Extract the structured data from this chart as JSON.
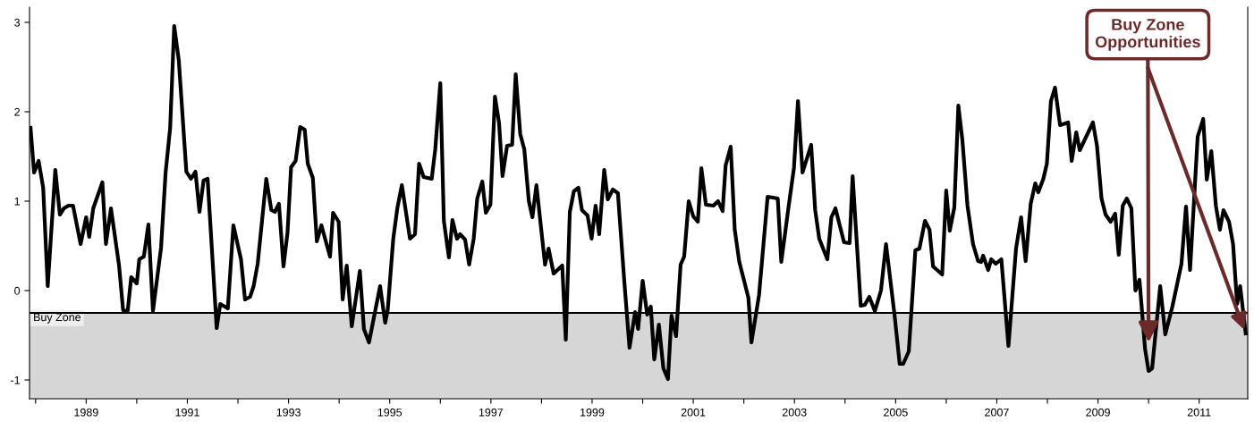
{
  "chart_data": {
    "type": "line",
    "x": [
      1987.9,
      1987.97,
      1988.06,
      1988.15,
      1988.24,
      1988.39,
      1988.48,
      1988.56,
      1988.65,
      1988.74,
      1988.89,
      1989.0,
      1989.06,
      1989.14,
      1989.32,
      1989.39,
      1989.49,
      1989.65,
      1989.73,
      1989.82,
      1989.89,
      1990.0,
      1990.05,
      1990.14,
      1990.23,
      1990.32,
      1990.48,
      1990.57,
      1990.66,
      1990.74,
      1990.83,
      1990.98,
      1991.07,
      1991.16,
      1991.24,
      1991.32,
      1991.4,
      1991.58,
      1991.65,
      1991.8,
      1991.91,
      1992.06,
      1992.14,
      1992.24,
      1992.31,
      1992.39,
      1992.56,
      1992.66,
      1992.73,
      1992.81,
      1992.9,
      1992.98,
      1993.05,
      1993.14,
      1993.23,
      1993.32,
      1993.38,
      1993.48,
      1993.56,
      1993.65,
      1993.82,
      1993.88,
      1993.99,
      1994.07,
      1994.15,
      1994.25,
      1994.41,
      1994.49,
      1994.59,
      1994.66,
      1994.81,
      1994.91,
      1994.96,
      1995.07,
      1995.15,
      1995.24,
      1995.4,
      1995.5,
      1995.58,
      1995.67,
      1995.83,
      1995.9,
      1996.0,
      1996.07,
      1996.17,
      1996.24,
      1996.33,
      1996.39,
      1996.49,
      1996.57,
      1996.66,
      1996.73,
      1996.83,
      1996.9,
      1996.99,
      1997.08,
      1997.16,
      1997.23,
      1997.32,
      1997.42,
      1997.49,
      1997.58,
      1997.66,
      1997.75,
      1997.82,
      1997.9,
      1998.07,
      1998.14,
      1998.24,
      1998.41,
      1998.48,
      1998.56,
      1998.64,
      1998.73,
      1998.8,
      1998.91,
      1998.99,
      1999.07,
      1999.14,
      1999.24,
      1999.31,
      1999.41,
      1999.51,
      1999.64,
      1999.74,
      1999.85,
      1999.91,
      2000.0,
      2000.09,
      2000.16,
      2000.23,
      2000.32,
      2000.41,
      2000.5,
      2000.57,
      2000.66,
      2000.75,
      2000.82,
      2000.91,
      2001.0,
      2001.09,
      2001.16,
      2001.25,
      2001.4,
      2001.49,
      2001.58,
      2001.64,
      2001.74,
      2001.82,
      2001.91,
      2002.09,
      2002.15,
      2002.3,
      2002.47,
      2002.67,
      2002.74,
      2002.88,
      2002.99,
      2003.07,
      2003.16,
      2003.33,
      2003.41,
      2003.49,
      2003.65,
      2003.73,
      2003.81,
      2003.98,
      2004.09,
      2004.15,
      2004.31,
      2004.39,
      2004.48,
      2004.59,
      2004.71,
      2004.81,
      2004.98,
      2005.08,
      2005.15,
      2005.26,
      2005.39,
      2005.47,
      2005.58,
      2005.67,
      2005.74,
      2005.92,
      2006.0,
      2006.07,
      2006.16,
      2006.24,
      2006.32,
      2006.42,
      2006.53,
      2006.63,
      2006.69,
      2006.73,
      2006.83,
      2006.89,
      2006.98,
      2007.09,
      2007.23,
      2007.38,
      2007.48,
      2007.57,
      2007.67,
      2007.76,
      2007.82,
      2007.92,
      2007.99,
      2008.07,
      2008.15,
      2008.25,
      2008.41,
      2008.48,
      2008.57,
      2008.64,
      2008.9,
      2008.98,
      2009.07,
      2009.15,
      2009.25,
      2009.34,
      2009.41,
      2009.49,
      2009.57,
      2009.66,
      2009.74,
      2009.82,
      2009.93,
      2010.0,
      2010.07,
      2010.23,
      2010.33,
      2010.47,
      2010.65,
      2010.74,
      2010.82,
      2010.97,
      2011.08,
      2011.15,
      2011.24,
      2011.33,
      2011.41,
      2011.48,
      2011.59,
      2011.67,
      2011.75,
      2011.81,
      2011.92
    ],
    "series": [
      {
        "color": "#000000",
        "values": [
          1.82,
          1.32,
          1.45,
          1.15,
          0.05,
          1.35,
          0.85,
          0.92,
          0.95,
          0.95,
          0.52,
          0.82,
          0.6,
          0.92,
          1.21,
          0.52,
          0.92,
          0.28,
          -0.22,
          -0.23,
          0.15,
          0.08,
          0.35,
          0.38,
          0.74,
          -0.23,
          0.48,
          1.32,
          1.82,
          2.96,
          2.58,
          1.33,
          1.25,
          1.33,
          0.88,
          1.23,
          1.25,
          -0.42,
          -0.15,
          -0.2,
          0.73,
          0.35,
          -0.1,
          -0.07,
          0.05,
          0.3,
          1.25,
          0.9,
          0.88,
          0.97,
          0.27,
          0.65,
          1.38,
          1.45,
          1.83,
          1.8,
          1.42,
          1.26,
          0.55,
          0.73,
          0.38,
          0.87,
          0.77,
          -0.1,
          0.28,
          -0.4,
          0.22,
          -0.43,
          -0.58,
          -0.38,
          0.05,
          -0.36,
          -0.22,
          0.58,
          0.92,
          1.18,
          0.58,
          0.63,
          1.42,
          1.27,
          1.25,
          1.58,
          2.32,
          0.78,
          0.37,
          0.79,
          0.58,
          0.63,
          0.57,
          0.29,
          0.58,
          1.03,
          1.22,
          0.87,
          0.96,
          2.17,
          1.88,
          1.28,
          1.62,
          1.63,
          2.42,
          1.75,
          1.58,
          1.0,
          0.82,
          1.18,
          0.29,
          0.47,
          0.19,
          0.28,
          -0.55,
          0.88,
          1.11,
          1.15,
          0.9,
          0.84,
          0.58,
          0.95,
          0.63,
          1.35,
          1.02,
          1.13,
          1.09,
          0.08,
          -0.64,
          -0.24,
          -0.43,
          0.11,
          -0.27,
          -0.18,
          -0.77,
          -0.38,
          -0.87,
          -0.99,
          -0.28,
          -0.51,
          0.29,
          0.38,
          1.0,
          0.83,
          0.77,
          1.37,
          0.96,
          0.95,
          1.0,
          0.89,
          1.4,
          1.61,
          0.68,
          0.32,
          -0.08,
          -0.58,
          -0.05,
          1.05,
          1.03,
          0.32,
          0.92,
          1.37,
          2.12,
          1.32,
          1.63,
          0.9,
          0.58,
          0.35,
          0.82,
          0.92,
          0.54,
          0.53,
          1.28,
          -0.17,
          -0.16,
          -0.07,
          -0.23,
          0.0,
          0.52,
          -0.28,
          -0.82,
          -0.82,
          -0.68,
          0.45,
          0.47,
          0.78,
          0.68,
          0.27,
          0.18,
          1.12,
          0.67,
          0.93,
          2.07,
          1.68,
          0.95,
          0.52,
          0.33,
          0.32,
          0.39,
          0.23,
          0.35,
          0.3,
          0.35,
          -0.62,
          0.47,
          0.82,
          0.33,
          0.97,
          1.2,
          1.1,
          1.25,
          1.42,
          2.12,
          2.27,
          1.85,
          1.88,
          1.45,
          1.77,
          1.57,
          1.88,
          1.62,
          1.03,
          0.85,
          0.77,
          0.86,
          0.4,
          0.95,
          1.03,
          0.92,
          0.0,
          0.12,
          -0.65,
          -0.9,
          -0.87,
          0.05,
          -0.49,
          -0.18,
          0.3,
          0.94,
          0.23,
          1.72,
          1.92,
          1.24,
          1.56,
          0.95,
          0.68,
          0.9,
          0.77,
          0.52,
          -0.15,
          0.05,
          -0.48
        ]
      }
    ],
    "xlim": [
      1987.88,
      2011.96
    ],
    "xticks": [
      {
        "value": 1988,
        "label": null
      },
      1989,
      {
        "value": 1990,
        "label": null
      },
      1991,
      {
        "value": 1992,
        "label": null
      },
      1993,
      {
        "value": 1994,
        "label": null
      },
      1995,
      {
        "value": 1996,
        "label": null
      },
      1997,
      {
        "value": 1998,
        "label": null
      },
      1999,
      {
        "value": 2000,
        "label": null
      },
      2001,
      {
        "value": 2002,
        "label": null
      },
      2003,
      {
        "value": 2004,
        "label": null
      },
      2005,
      {
        "value": 2006,
        "label": null
      },
      2007,
      {
        "value": 2008,
        "label": null
      },
      2009,
      {
        "value": 2010,
        "label": null
      },
      2011
    ],
    "ylim": [
      -1.21,
      3.17
    ],
    "yticks": [
      -1,
      0,
      1,
      2,
      3
    ],
    "bands": [
      {
        "axis": "y",
        "from": -1.21,
        "to": -0.25,
        "label": "Buy Zone",
        "color": "#d6d6d6"
      }
    ],
    "ref_lines": [
      {
        "axis": "y",
        "value": -0.25,
        "color": "#000000"
      }
    ],
    "annotations": [
      {
        "text": "Buy Zone\nOpportunities",
        "x": 2010.0,
        "y": -0.58
      }
    ],
    "grid": false,
    "marker": "none",
    "line_style": "solid"
  }
}
